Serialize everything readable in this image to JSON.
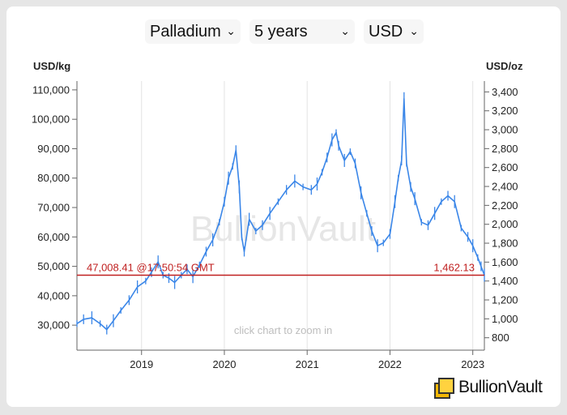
{
  "controls": {
    "metal": "Palladium",
    "period": "5 years",
    "currency": "USD"
  },
  "chart_data": {
    "type": "line",
    "left_axis_label": "USD/kg",
    "right_axis_label": "USD/oz",
    "left_ticks": [
      "110,000",
      "100,000",
      "90,000",
      "80,000",
      "70,000",
      "60,000",
      "50,000",
      "40,000",
      "30,000"
    ],
    "left_tick_values": [
      110000,
      100000,
      90000,
      80000,
      70000,
      60000,
      50000,
      40000,
      30000
    ],
    "right_ticks": [
      "3,400",
      "3,200",
      "3,000",
      "2,800",
      "2,600",
      "2,400",
      "2,200",
      "2,000",
      "1,800",
      "1,600",
      "1,400",
      "1,200",
      "1,000",
      "800"
    ],
    "right_tick_values": [
      3400,
      3200,
      3000,
      2800,
      2600,
      2400,
      2200,
      2000,
      1800,
      1600,
      1400,
      1200,
      1000,
      800
    ],
    "x_labels": [
      "2019",
      "2020",
      "2021",
      "2022",
      "2023"
    ],
    "x_label_values": [
      2019,
      2020,
      2021,
      2022,
      2023
    ],
    "xlim": [
      2018.22,
      2023.14
    ],
    "ylim": [
      21500,
      113000
    ],
    "series": [
      {
        "x": [
          2018.22,
          2018.3,
          2018.4,
          2018.5,
          2018.58,
          2018.66,
          2018.75,
          2018.85,
          2018.95,
          2019.05,
          2019.12,
          2019.2,
          2019.26,
          2019.33,
          2019.4,
          2019.48,
          2019.55,
          2019.62,
          2019.7,
          2019.78,
          2019.86,
          2019.94,
          2020.0,
          2020.05,
          2020.1,
          2020.14,
          2020.18,
          2020.21,
          2020.24,
          2020.3,
          2020.38,
          2020.46,
          2020.55,
          2020.65,
          2020.75,
          2020.85,
          2020.95,
          2021.05,
          2021.12,
          2021.18,
          2021.24,
          2021.3,
          2021.35,
          2021.38,
          2021.45,
          2021.52,
          2021.58,
          2021.65,
          2021.72,
          2021.78,
          2021.85,
          2021.92,
          2022.0,
          2022.06,
          2022.1,
          2022.14,
          2022.17,
          2022.2,
          2022.25,
          2022.3,
          2022.38,
          2022.46,
          2022.54,
          2022.62,
          2022.7,
          2022.78,
          2022.86,
          2022.94,
          2023.0,
          2023.06,
          2023.1,
          2023.14
        ],
        "values": [
          30500,
          32000,
          32500,
          30500,
          28500,
          31500,
          35000,
          38500,
          43000,
          45000,
          48000,
          51500,
          47000,
          46000,
          44500,
          47000,
          49000,
          46500,
          50500,
          55000,
          59000,
          65000,
          72000,
          80000,
          84000,
          89500,
          77000,
          60000,
          55000,
          66000,
          62000,
          64000,
          68000,
          72000,
          76000,
          79000,
          77000,
          76000,
          78000,
          82000,
          87000,
          93000,
          95500,
          91000,
          86000,
          89000,
          85000,
          75000,
          68000,
          62000,
          57000,
          58000,
          61000,
          72000,
          80000,
          86000,
          107000,
          85000,
          77000,
          73000,
          65000,
          64000,
          68000,
          72000,
          74000,
          72000,
          63000,
          60000,
          57000,
          53000,
          50000,
          47008.41
        ]
      }
    ],
    "current_value_left": "47,008.41",
    "current_time": "@17:50:54 GMT",
    "current_value_right": "1,462.13",
    "current_value": 47008.41,
    "watermark": "BullionVault",
    "zoom_hint": "click chart to zoom in"
  },
  "brand": {
    "name": "BullionVault"
  },
  "colors": {
    "series": "#3a86e8",
    "reference_line": "#c02020",
    "grid": "#e3e3e3"
  }
}
